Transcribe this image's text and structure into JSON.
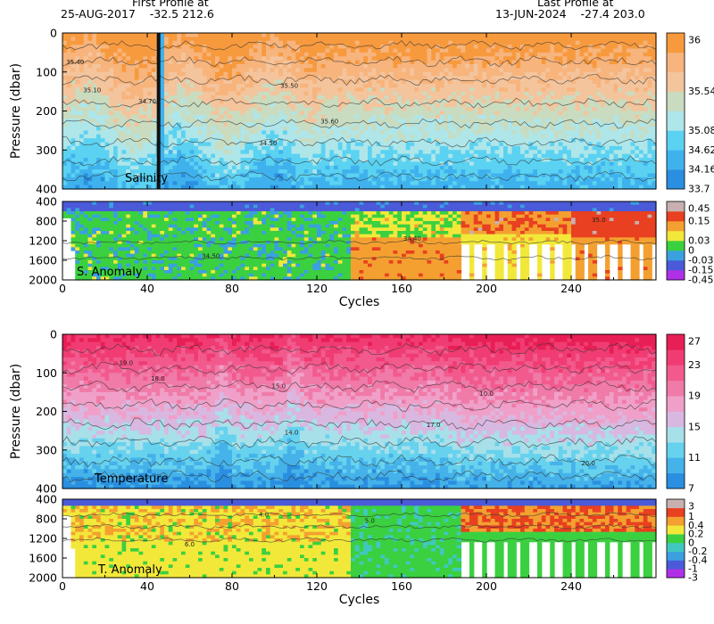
{
  "header": {
    "first_title": "First Profile at",
    "first_date": "25-AUG-2017",
    "first_lat": "-32.5",
    "first_lon": "212.6",
    "last_title": "Last Profile at",
    "last_date": "13-JUN-2024",
    "last_lat": "-27.4",
    "last_lon": "203.0"
  },
  "chart_data": [
    {
      "type": "heatmap",
      "name": "Salinity",
      "panel_label": "Salinity",
      "ylabel": "Pressure (dbar)",
      "xlim": [
        0,
        280
      ],
      "ylim": [
        0,
        400
      ],
      "yticks": [
        0,
        100,
        200,
        300,
        400
      ],
      "xticks": [
        0,
        40,
        80,
        120,
        160,
        200,
        240
      ],
      "colorbar": [
        {
          "label": "33.7",
          "color": "#2a8fe0"
        },
        {
          "label": "34.16",
          "color": "#3fb2ee"
        },
        {
          "label": "34.62",
          "color": "#5bd2f2"
        },
        {
          "label": "35.08",
          "color": "#aee6e9"
        },
        {
          "label": "",
          "color": "#c9dcc0"
        },
        {
          "label": "35.54",
          "color": "#f4c49c"
        },
        {
          "label": "",
          "color": "#f7b47c"
        },
        {
          "label": "36",
          "color": "#f79a3e"
        }
      ],
      "contour_labels": [
        "35.40",
        "35.10",
        "34.70",
        "35.50",
        "34.50",
        "35.60"
      ]
    },
    {
      "type": "heatmap",
      "name": "S. Anomaly",
      "panel_label": "S. Anomaly",
      "ylim": [
        400,
        2000
      ],
      "yticks": [
        400,
        800,
        1200,
        1600,
        2000
      ],
      "xticks": [
        0,
        40,
        80,
        120,
        160,
        200,
        240
      ],
      "xlim": [
        0,
        280
      ],
      "xlabel": "Cycles",
      "colorbar": [
        {
          "label": "-0.45",
          "color": "#b030e8"
        },
        {
          "label": "-0.15",
          "color": "#4a5ad8"
        },
        {
          "label": "-0.03",
          "color": "#3aa0e0"
        },
        {
          "label": "0",
          "color": "#3bd040"
        },
        {
          "label": "0.03",
          "color": "#f2e83a"
        },
        {
          "label": "",
          "color": "#f4a030"
        },
        {
          "label": "0.15",
          "color": "#e84020"
        },
        {
          "label": "0.45",
          "color": "#c8b0b0"
        }
      ],
      "contour_labels": [
        "34.40",
        "34.50",
        "35.0"
      ]
    },
    {
      "type": "heatmap",
      "name": "Temperature",
      "panel_label": "Temperature",
      "ylabel": "Pressure (dbar)",
      "xlim": [
        0,
        280
      ],
      "ylim": [
        0,
        400
      ],
      "yticks": [
        0,
        100,
        200,
        300,
        400
      ],
      "xticks": [
        0,
        40,
        80,
        120,
        160,
        200,
        240
      ],
      "colorbar": [
        {
          "label": "7",
          "color": "#2a8fe0"
        },
        {
          "label": "",
          "color": "#45b2ea"
        },
        {
          "label": "11",
          "color": "#66d2ee"
        },
        {
          "label": "",
          "color": "#a8e0ea"
        },
        {
          "label": "15",
          "color": "#d8b8e0"
        },
        {
          "label": "",
          "color": "#f0a0c8"
        },
        {
          "label": "19",
          "color": "#f07aa8"
        },
        {
          "label": "",
          "color": "#f25a8e"
        },
        {
          "label": "23",
          "color": "#f03c72"
        },
        {
          "label": "27",
          "color": "#e81e56"
        }
      ],
      "contour_labels": [
        "19.0",
        "18.0",
        "15.0",
        "14.0",
        "17.0",
        "10.0",
        "20.0"
      ]
    },
    {
      "type": "heatmap",
      "name": "T. Anomaly",
      "panel_label": "T. Anomaly",
      "ylim": [
        400,
        2000
      ],
      "yticks": [
        400,
        800,
        1200,
        1600,
        2000
      ],
      "xticks": [
        0,
        40,
        80,
        120,
        160,
        200,
        240
      ],
      "xlim": [
        0,
        280
      ],
      "xlabel": "Cycles",
      "colorbar": [
        {
          "label": "-3",
          "color": "#b030e8"
        },
        {
          "label": "-1",
          "color": "#4a5ad8"
        },
        {
          "label": "-0.4",
          "color": "#3aa0e0"
        },
        {
          "label": "-0.2",
          "color": "#40c8c0"
        },
        {
          "label": "0",
          "color": "#3bd040"
        },
        {
          "label": "0.2",
          "color": "#f2e83a"
        },
        {
          "label": "0.4",
          "color": "#f4a030"
        },
        {
          "label": "1",
          "color": "#e84020"
        },
        {
          "label": "3",
          "color": "#c8b0b0"
        }
      ],
      "contour_labels": [
        "4.0",
        "5.0",
        "6.0"
      ]
    }
  ]
}
